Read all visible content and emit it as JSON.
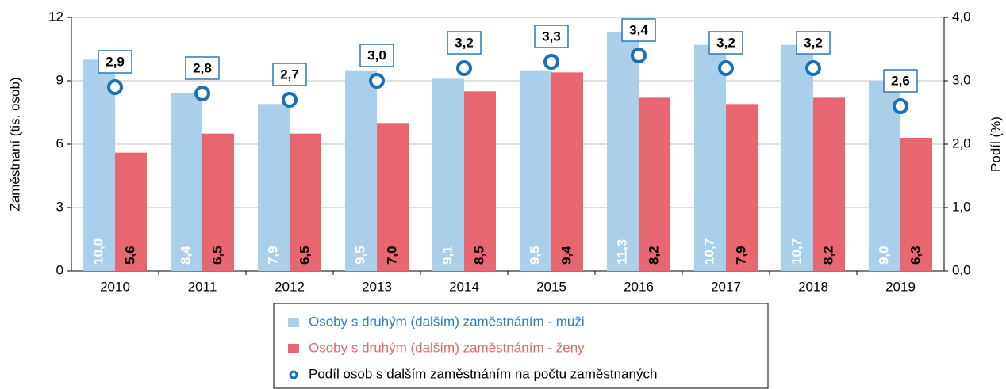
{
  "chart_data": {
    "type": "bar",
    "categories": [
      "2010",
      "2011",
      "2012",
      "2013",
      "2014",
      "2015",
      "2016",
      "2017",
      "2018",
      "2019"
    ],
    "series": [
      {
        "name": "Osoby s druhým (dalším) zaměstnáním - muži",
        "color": "#a9cfea",
        "values": [
          10.0,
          8.4,
          7.9,
          9.5,
          9.1,
          9.5,
          11.3,
          10.7,
          10.7,
          9.0
        ],
        "value_labels": [
          "10,0",
          "8,4",
          "7,9",
          "9,5",
          "9,1",
          "9,5",
          "11,3",
          "10,7",
          "10,7",
          "9,0"
        ]
      },
      {
        "name": "Osoby s druhým (dalším) zaměstnáním - ženy",
        "color": "#e8666f",
        "values": [
          5.6,
          6.5,
          6.5,
          7.0,
          8.5,
          9.4,
          8.2,
          7.9,
          8.2,
          6.3
        ],
        "value_labels": [
          "5,6",
          "6,5",
          "6,5",
          "7,0",
          "8,5",
          "9,4",
          "8,2",
          "7,9",
          "8,2",
          "6,3"
        ]
      },
      {
        "name": "Podíl osob s dalším zaměstnáním na počtu zaměstnaných",
        "color": "#1a6fb5",
        "axis": "y2",
        "values": [
          2.9,
          2.8,
          2.7,
          3.0,
          3.2,
          3.3,
          3.4,
          3.2,
          3.2,
          2.6
        ],
        "value_labels": [
          "2,9",
          "2,8",
          "2,7",
          "3,0",
          "3,2",
          "3,3",
          "3,4",
          "3,2",
          "3,2",
          "2,6"
        ]
      }
    ],
    "ylabel": "Zaměstnaní (tis. osob)",
    "y2label": "Podíl  (%)",
    "ylim": [
      0,
      12
    ],
    "yticks": [
      0,
      3,
      6,
      9,
      12
    ],
    "y2lim": [
      0,
      4
    ],
    "y2ticks": [
      {
        "value": 0,
        "label": "0,0"
      },
      {
        "value": 1,
        "label": "1,0"
      },
      {
        "value": 2,
        "label": "2,0"
      },
      {
        "value": 3,
        "label": "3,0"
      },
      {
        "value": 4,
        "label": "4,0"
      }
    ],
    "grid": true,
    "legend": "bottom"
  }
}
